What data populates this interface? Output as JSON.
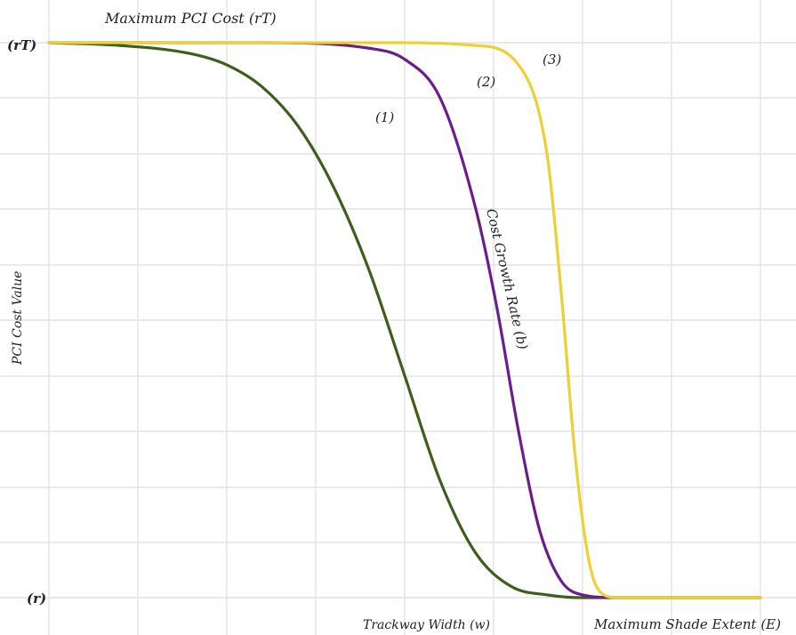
{
  "chart_data": {
    "type": "line",
    "title": "Maximum PCI Cost (rT)",
    "xlabel": "Trackway Width (w)",
    "x_end_label": "Maximum Shade Extent (E)",
    "ylabel": "PCI Cost Value",
    "yticks": [
      "(rT)",
      "(r)"
    ],
    "xlim": [
      0,
      1
    ],
    "ylim": [
      0,
      1
    ],
    "grid": true,
    "annotation": "Cost Growth Rate (b)",
    "series": [
      {
        "name": "(1)",
        "color": "#3d5e1c",
        "x": [
          0,
          0.1,
          0.2,
          0.25,
          0.3,
          0.35,
          0.4,
          0.45,
          0.5,
          0.55,
          0.6,
          0.65,
          0.7,
          0.75,
          0.8,
          1.0
        ],
        "y": [
          1.0,
          0.995,
          0.98,
          0.96,
          0.92,
          0.85,
          0.74,
          0.59,
          0.4,
          0.21,
          0.08,
          0.02,
          0.005,
          0.0,
          0.0,
          0.0
        ]
      },
      {
        "name": "(2)",
        "color": "#6a1e8a",
        "x": [
          0,
          0.3,
          0.45,
          0.5,
          0.55,
          0.6,
          0.63,
          0.66,
          0.69,
          0.72,
          0.75,
          0.8,
          1.0
        ],
        "y": [
          1.0,
          1.0,
          0.99,
          0.97,
          0.9,
          0.7,
          0.52,
          0.3,
          0.12,
          0.03,
          0.005,
          0.0,
          0.0
        ]
      },
      {
        "name": "(3)",
        "color": "#efd033",
        "x": [
          0,
          0.5,
          0.6,
          0.66,
          0.7,
          0.72,
          0.74,
          0.76,
          0.78,
          0.8,
          1.0
        ],
        "y": [
          1.0,
          1.0,
          0.995,
          0.96,
          0.8,
          0.55,
          0.25,
          0.06,
          0.005,
          0.0,
          0.0
        ]
      }
    ]
  }
}
